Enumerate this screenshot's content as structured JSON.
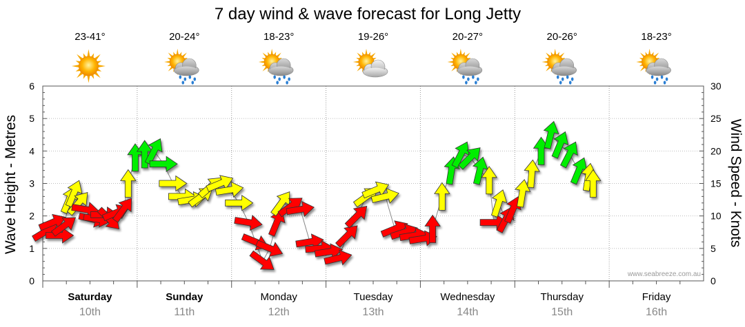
{
  "chart_data": {
    "type": "line",
    "title": "7 day wind & wave forecast for Long Jetty",
    "y_left": {
      "label": "Wave Height - Metres",
      "range": [
        0,
        6
      ],
      "ticks": [
        "0",
        "1",
        "2",
        "3",
        "4",
        "5",
        "6"
      ]
    },
    "y_right": {
      "label": "Wind Speed - Knots",
      "range": [
        0,
        30
      ],
      "ticks": [
        "0",
        "5",
        "10",
        "15",
        "20",
        "25",
        "30"
      ]
    },
    "grid": true,
    "days": [
      {
        "name": "Saturday",
        "date": "10th",
        "temp": "23-41°",
        "weather_icon": "sunny-icon",
        "bold": true
      },
      {
        "name": "Sunday",
        "date": "11th",
        "temp": "20-24°",
        "weather_icon": "sun-cloud-rain-icon",
        "bold": true
      },
      {
        "name": "Monday",
        "date": "12th",
        "temp": "18-23°",
        "weather_icon": "sun-cloud-rain-icon",
        "bold": false
      },
      {
        "name": "Tuesday",
        "date": "13th",
        "temp": "19-26°",
        "weather_icon": "partly-cloudy-icon",
        "bold": false
      },
      {
        "name": "Wednesday",
        "date": "14th",
        "temp": "20-27°",
        "weather_icon": "sun-cloud-rain-icon",
        "bold": false
      },
      {
        "name": "Thursday",
        "date": "15th",
        "temp": "20-26°",
        "weather_icon": "sun-cloud-rain-icon",
        "bold": false
      },
      {
        "name": "Friday",
        "date": "16th",
        "temp": "18-23°",
        "weather_icon": "sun-cloud-rain-icon",
        "bold": false
      }
    ],
    "colors": {
      "low": "#ff0000",
      "mid": "#ffff00",
      "high": "#00ee00",
      "border": "#333333"
    },
    "series": [
      {
        "name": "Wind Speed - Knots",
        "points": [
          {
            "t": 0.0,
            "v": 7.6,
            "dir": 1.3
          },
          {
            "t": 0.15,
            "v": 9.0,
            "dir": 1.5
          },
          {
            "t": 0.3,
            "v": 7.0,
            "dir": 2.0
          },
          {
            "t": 0.4,
            "v": 8.5,
            "dir": 1.2
          },
          {
            "t": 0.5,
            "v": 12.5,
            "dir": 0.5
          },
          {
            "t": 0.6,
            "v": 13.5,
            "dir": 0.5
          },
          {
            "t": 0.7,
            "v": 12.0,
            "dir": 0.9
          },
          {
            "t": 0.85,
            "v": 11.0,
            "dir": 2.2
          },
          {
            "t": 1.0,
            "v": 9.5,
            "dir": 2.3
          },
          {
            "t": 1.1,
            "v": 9.5,
            "dir": 2.2
          },
          {
            "t": 1.25,
            "v": 10.2,
            "dir": 2.0
          },
          {
            "t": 1.35,
            "v": 9.5,
            "dir": 3.0
          },
          {
            "t": 1.5,
            "v": 10.5,
            "dir": 1.5
          },
          {
            "t": 1.65,
            "v": 11.0,
            "dir": 0.8
          },
          {
            "t": 1.75,
            "v": 15.0,
            "dir": 0.0
          },
          {
            "t": 1.9,
            "v": 19.0,
            "dir": 0.0
          },
          {
            "t": 2.1,
            "v": 19.5,
            "dir": 0.0
          },
          {
            "t": 2.3,
            "v": 20.0,
            "dir": 0.6
          },
          {
            "t": 2.5,
            "v": 18.0,
            "dir": 2.0
          },
          {
            "t": 2.7,
            "v": 15.0,
            "dir": 2.0
          },
          {
            "t": 2.9,
            "v": 13.0,
            "dir": 2.0
          },
          {
            "t": 3.1,
            "v": 12.5,
            "dir": 1.8
          },
          {
            "t": 3.3,
            "v": 13.0,
            "dir": 1.2
          },
          {
            "t": 3.5,
            "v": 14.5,
            "dir": 1.1
          },
          {
            "t": 3.7,
            "v": 15.0,
            "dir": 1.5
          },
          {
            "t": 3.9,
            "v": 14.0,
            "dir": 1.8
          },
          {
            "t": 4.1,
            "v": 12.0,
            "dir": 2.0
          },
          {
            "t": 4.3,
            "v": 9.0,
            "dir": 2.2
          },
          {
            "t": 4.45,
            "v": 6.0,
            "dir": 2.5
          },
          {
            "t": 4.6,
            "v": 3.0,
            "dir": 2.8
          },
          {
            "t": 4.75,
            "v": 5.0,
            "dir": 2.5
          },
          {
            "t": 4.9,
            "v": 9.0,
            "dir": 0.5
          },
          {
            "t": 5.0,
            "v": 12.0,
            "dir": 0.8
          },
          {
            "t": 5.2,
            "v": 11.5,
            "dir": 1.2
          },
          {
            "t": 5.4,
            "v": 11.0,
            "dir": 1.8
          },
          {
            "t": 5.6,
            "v": 6.0,
            "dir": 1.8
          },
          {
            "t": 5.8,
            "v": 5.0,
            "dir": 1.9
          },
          {
            "t": 6.0,
            "v": 4.5,
            "dir": 1.8
          },
          {
            "t": 6.2,
            "v": 3.5,
            "dir": 1.7
          },
          {
            "t": 6.4,
            "v": 7.0,
            "dir": 1.0
          },
          {
            "t": 6.6,
            "v": 10.0,
            "dir": 1.0
          },
          {
            "t": 6.8,
            "v": 13.0,
            "dir": 1.2
          },
          {
            "t": 7.0,
            "v": 14.0,
            "dir": 1.5
          },
          {
            "t": 7.2,
            "v": 13.0,
            "dir": 1.7
          },
          {
            "t": 7.4,
            "v": 8.0,
            "dir": 1.5
          },
          {
            "t": 7.6,
            "v": 7.5,
            "dir": 1.6
          },
          {
            "t": 7.8,
            "v": 7.0,
            "dir": 1.8
          },
          {
            "t": 8.0,
            "v": 6.5,
            "dir": 1.8
          },
          {
            "t": 8.2,
            "v": 8.0,
            "dir": 0.0
          },
          {
            "t": 8.4,
            "v": 13.0,
            "dir": 0.0
          },
          {
            "t": 8.6,
            "v": 17.0,
            "dir": 0.2
          },
          {
            "t": 8.8,
            "v": 19.5,
            "dir": 0.6
          },
          {
            "t": 9.0,
            "v": 19.0,
            "dir": 1.0
          },
          {
            "t": 9.2,
            "v": 17.0,
            "dir": 0.3
          },
          {
            "t": 9.4,
            "v": 15.5,
            "dir": 0.0
          },
          {
            "t": 9.5,
            "v": 9.0,
            "dir": 2.0
          },
          {
            "t": 9.6,
            "v": 12.0,
            "dir": 0.4
          },
          {
            "t": 9.75,
            "v": 9.5,
            "dir": 0.6
          },
          {
            "t": 9.9,
            "v": 11.0,
            "dir": 0.5
          },
          {
            "t": 10.1,
            "v": 13.5,
            "dir": 0.2
          },
          {
            "t": 10.3,
            "v": 16.5,
            "dir": 0.1
          },
          {
            "t": 10.5,
            "v": 20.0,
            "dir": 0.0
          },
          {
            "t": 10.7,
            "v": 22.5,
            "dir": 0.3
          },
          {
            "t": 10.9,
            "v": 21.0,
            "dir": 0.5
          },
          {
            "t": 11.1,
            "v": 19.5,
            "dir": 0.6
          },
          {
            "t": 11.3,
            "v": 17.0,
            "dir": 0.5
          },
          {
            "t": 11.5,
            "v": 16.0,
            "dir": 0.2
          },
          {
            "t": 11.6,
            "v": 15.0,
            "dir": 0.0
          }
        ]
      }
    ],
    "credit": "www.seabreeze.com.au"
  }
}
